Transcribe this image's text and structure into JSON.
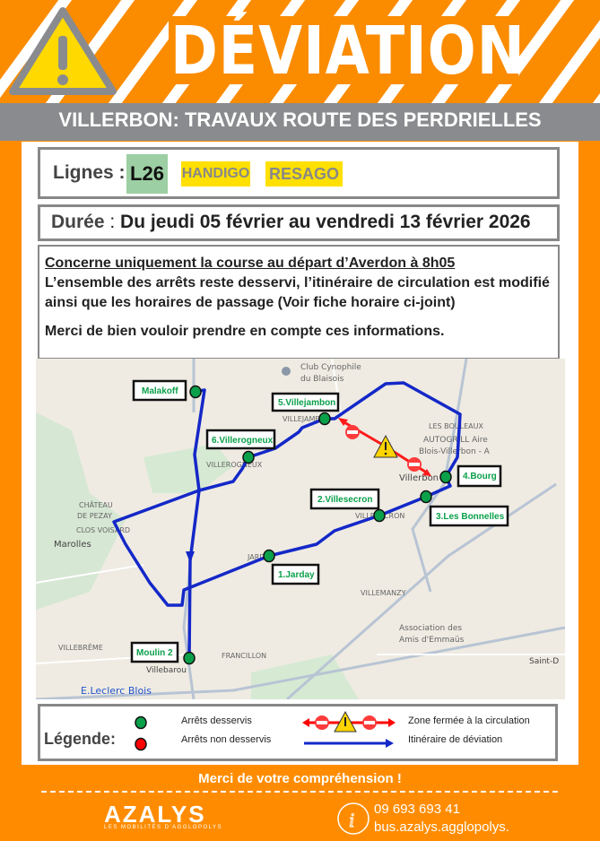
{
  "header": {
    "title": "DÉVIATION",
    "icon": "warning-triangle-icon",
    "subtitle": "VILLERBON:  TRAVAUX ROUTE DES PERDRIELLES"
  },
  "lines": {
    "label": "Lignes :",
    "badges": [
      {
        "text": "L26",
        "bg": "#9ccfa3"
      },
      {
        "text": "HANDIGO",
        "bg": "#ffe000"
      },
      {
        "text": "RESAGO",
        "bg": "#ffe000"
      }
    ]
  },
  "duration": {
    "label": "Durée",
    "sep": " : ",
    "value": "Du jeudi 05 février au vendredi 13 février 2026"
  },
  "info": {
    "line1": "Concerne uniquement la course au départ d’Averdon à 8h05",
    "line2": "L’ensemble des arrêts reste desservi, l’itinéraire de circulation est modifié ainsi que les horaires de passage (Voir fiche horaire ci-joint)",
    "line3": "Merci de bien vouloir prendre en compte ces informations."
  },
  "map": {
    "stops": [
      "Malakoff",
      "5.Villejambon",
      "6.Villerogneux",
      "2.Villesecron",
      "4.Bourg",
      "3.Les Bonnelles",
      "1.Jarday",
      "Moulin 2"
    ],
    "places": [
      "Club Cynophile",
      "du Blaisois",
      "VILLEJAMBON",
      "LES BOULEAUX",
      "AUTOGRILL Aire",
      "Blois-Villerbon - A",
      "VILLEROGNEUX",
      "CHÂTEAU",
      "DE PEZAY",
      "CLOS VOISARD",
      "Marolles",
      "VILLESECRON",
      "Villerbon",
      "JARDAY",
      "VILLEMANZY",
      "Association des",
      "Amis d'Emmaüs",
      "Saint-D",
      "VILLEBRÊME",
      "FRANCILLON",
      "Villebarou",
      "E.Leclerc Blois"
    ],
    "route_color": "#1428c8",
    "closed_color": "#ff1a1a",
    "stop_color": "#0aa04a"
  },
  "legend": {
    "title": "Légende:",
    "served": "Arrêts desservis",
    "not_served": "Arrêts non desservis",
    "closed": "Zone fermée à la circulation",
    "detour": "Itinéraire de déviation"
  },
  "footer": {
    "thanks": "Merci de votre compréhension !",
    "brand": "AZALYS",
    "brand_tagline": "LES MOBILITÉS D'AGGLOPOLYS",
    "phone": "09 693 693 41",
    "website": "bus.azalys.agglopolys."
  }
}
